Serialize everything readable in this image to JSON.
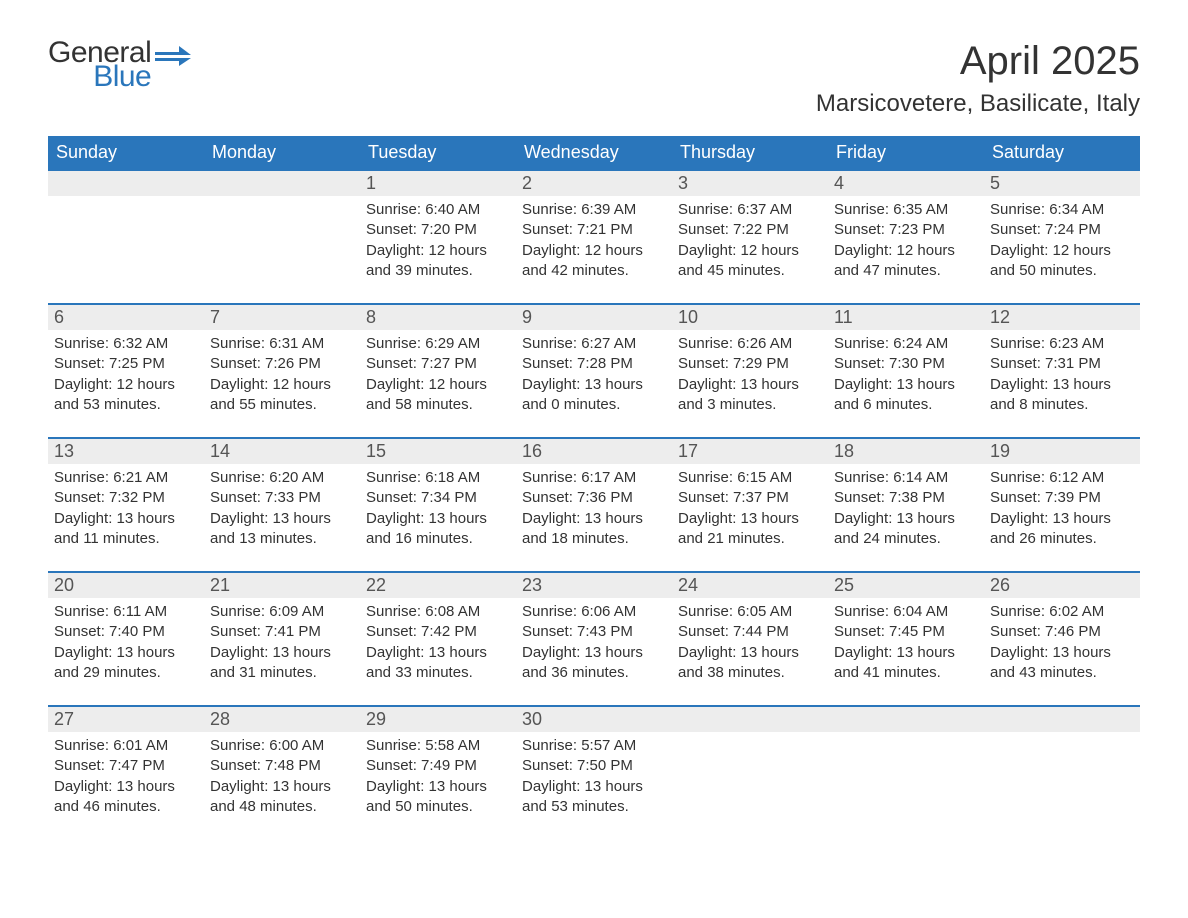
{
  "logo": {
    "word1": "General",
    "word2": "Blue",
    "accent_color": "#2a76bb",
    "text_color": "#333333"
  },
  "title": "April 2025",
  "subtitle": "Marsicovetere, Basilicate, Italy",
  "styling": {
    "header_bg": "#2a76bb",
    "header_text_color": "#ffffff",
    "daynum_bg": "#ededed",
    "daynum_text_color": "#555555",
    "body_text_color": "#333333",
    "row_divider_color": "#2a76bb",
    "page_bg": "#ffffff",
    "title_fontsize": 40,
    "subtitle_fontsize": 24,
    "header_fontsize": 18,
    "daynum_fontsize": 18,
    "cell_fontsize": 15,
    "columns": 7
  },
  "day_headers": [
    "Sunday",
    "Monday",
    "Tuesday",
    "Wednesday",
    "Thursday",
    "Friday",
    "Saturday"
  ],
  "weeks": [
    {
      "days": [
        null,
        null,
        {
          "n": "1",
          "sunrise": "6:40 AM",
          "sunset": "7:20 PM",
          "dl_h": "12",
          "dl_m": "39"
        },
        {
          "n": "2",
          "sunrise": "6:39 AM",
          "sunset": "7:21 PM",
          "dl_h": "12",
          "dl_m": "42"
        },
        {
          "n": "3",
          "sunrise": "6:37 AM",
          "sunset": "7:22 PM",
          "dl_h": "12",
          "dl_m": "45"
        },
        {
          "n": "4",
          "sunrise": "6:35 AM",
          "sunset": "7:23 PM",
          "dl_h": "12",
          "dl_m": "47"
        },
        {
          "n": "5",
          "sunrise": "6:34 AM",
          "sunset": "7:24 PM",
          "dl_h": "12",
          "dl_m": "50"
        }
      ]
    },
    {
      "days": [
        {
          "n": "6",
          "sunrise": "6:32 AM",
          "sunset": "7:25 PM",
          "dl_h": "12",
          "dl_m": "53"
        },
        {
          "n": "7",
          "sunrise": "6:31 AM",
          "sunset": "7:26 PM",
          "dl_h": "12",
          "dl_m": "55"
        },
        {
          "n": "8",
          "sunrise": "6:29 AM",
          "sunset": "7:27 PM",
          "dl_h": "12",
          "dl_m": "58"
        },
        {
          "n": "9",
          "sunrise": "6:27 AM",
          "sunset": "7:28 PM",
          "dl_h": "13",
          "dl_m": "0"
        },
        {
          "n": "10",
          "sunrise": "6:26 AM",
          "sunset": "7:29 PM",
          "dl_h": "13",
          "dl_m": "3"
        },
        {
          "n": "11",
          "sunrise": "6:24 AM",
          "sunset": "7:30 PM",
          "dl_h": "13",
          "dl_m": "6"
        },
        {
          "n": "12",
          "sunrise": "6:23 AM",
          "sunset": "7:31 PM",
          "dl_h": "13",
          "dl_m": "8"
        }
      ]
    },
    {
      "days": [
        {
          "n": "13",
          "sunrise": "6:21 AM",
          "sunset": "7:32 PM",
          "dl_h": "13",
          "dl_m": "11"
        },
        {
          "n": "14",
          "sunrise": "6:20 AM",
          "sunset": "7:33 PM",
          "dl_h": "13",
          "dl_m": "13"
        },
        {
          "n": "15",
          "sunrise": "6:18 AM",
          "sunset": "7:34 PM",
          "dl_h": "13",
          "dl_m": "16"
        },
        {
          "n": "16",
          "sunrise": "6:17 AM",
          "sunset": "7:36 PM",
          "dl_h": "13",
          "dl_m": "18"
        },
        {
          "n": "17",
          "sunrise": "6:15 AM",
          "sunset": "7:37 PM",
          "dl_h": "13",
          "dl_m": "21"
        },
        {
          "n": "18",
          "sunrise": "6:14 AM",
          "sunset": "7:38 PM",
          "dl_h": "13",
          "dl_m": "24"
        },
        {
          "n": "19",
          "sunrise": "6:12 AM",
          "sunset": "7:39 PM",
          "dl_h": "13",
          "dl_m": "26"
        }
      ]
    },
    {
      "days": [
        {
          "n": "20",
          "sunrise": "6:11 AM",
          "sunset": "7:40 PM",
          "dl_h": "13",
          "dl_m": "29"
        },
        {
          "n": "21",
          "sunrise": "6:09 AM",
          "sunset": "7:41 PM",
          "dl_h": "13",
          "dl_m": "31"
        },
        {
          "n": "22",
          "sunrise": "6:08 AM",
          "sunset": "7:42 PM",
          "dl_h": "13",
          "dl_m": "33"
        },
        {
          "n": "23",
          "sunrise": "6:06 AM",
          "sunset": "7:43 PM",
          "dl_h": "13",
          "dl_m": "36"
        },
        {
          "n": "24",
          "sunrise": "6:05 AM",
          "sunset": "7:44 PM",
          "dl_h": "13",
          "dl_m": "38"
        },
        {
          "n": "25",
          "sunrise": "6:04 AM",
          "sunset": "7:45 PM",
          "dl_h": "13",
          "dl_m": "41"
        },
        {
          "n": "26",
          "sunrise": "6:02 AM",
          "sunset": "7:46 PM",
          "dl_h": "13",
          "dl_m": "43"
        }
      ]
    },
    {
      "days": [
        {
          "n": "27",
          "sunrise": "6:01 AM",
          "sunset": "7:47 PM",
          "dl_h": "13",
          "dl_m": "46"
        },
        {
          "n": "28",
          "sunrise": "6:00 AM",
          "sunset": "7:48 PM",
          "dl_h": "13",
          "dl_m": "48"
        },
        {
          "n": "29",
          "sunrise": "5:58 AM",
          "sunset": "7:49 PM",
          "dl_h": "13",
          "dl_m": "50"
        },
        {
          "n": "30",
          "sunrise": "5:57 AM",
          "sunset": "7:50 PM",
          "dl_h": "13",
          "dl_m": "53"
        },
        null,
        null,
        null
      ]
    }
  ],
  "labels": {
    "sunrise": "Sunrise:",
    "sunset": "Sunset:",
    "daylight_prefix": "Daylight:",
    "hours_word": "hours",
    "and_word": "and",
    "minutes_word": "minutes."
  }
}
